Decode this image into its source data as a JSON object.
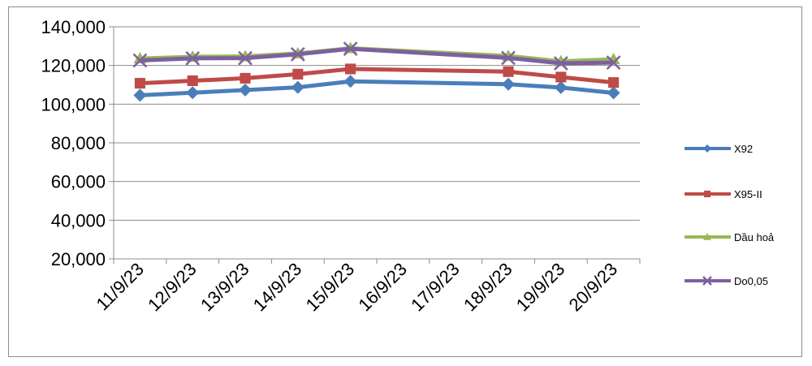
{
  "chart_data": {
    "type": "line",
    "categories": [
      "11/9/23",
      "12/9/23",
      "13/9/23",
      "14/9/23",
      "15/9/23",
      "16/9/23",
      "17/9/23",
      "18/9/23",
      "19/9/23",
      "20/9/23"
    ],
    "ylim": [
      20000,
      140000
    ],
    "y_ticks": [
      "20,000",
      "40,000",
      "60,000",
      "80,000",
      "100,000",
      "120,000",
      "140,000"
    ],
    "grid": true,
    "legend_position": "right",
    "series": [
      {
        "name": "X92",
        "color": "#4a7ebb",
        "marker": "diamond",
        "values": [
          104600,
          105900,
          107300,
          108700,
          111800,
          null,
          null,
          110300,
          108600,
          105800
        ]
      },
      {
        "name": "X95-II",
        "color": "#be4b48",
        "marker": "square",
        "values": [
          110800,
          112100,
          113400,
          115500,
          118200,
          null,
          null,
          116800,
          114000,
          111200
        ]
      },
      {
        "name": "Dầu hoả",
        "color": "#98b954",
        "marker": "triangle",
        "values": [
          123600,
          124500,
          124700,
          126200,
          128900,
          null,
          null,
          124900,
          122100,
          123200
        ]
      },
      {
        "name": "Do0,05",
        "color": "#7d60a0",
        "marker": "x",
        "values": [
          122600,
          123700,
          123800,
          125800,
          128600,
          null,
          null,
          123900,
          121100,
          121500
        ]
      }
    ]
  }
}
